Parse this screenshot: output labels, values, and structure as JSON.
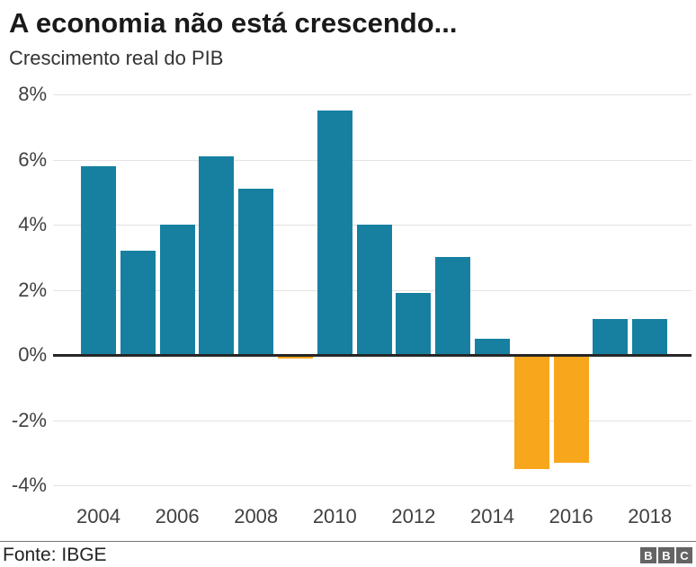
{
  "header": {
    "title": "A economia não está crescendo...",
    "subtitle": "Crescimento real do PIB"
  },
  "footer": {
    "source": "Fonte: IBGE",
    "logo": [
      "B",
      "B",
      "C"
    ]
  },
  "colors": {
    "positive_bar": "#1780a1",
    "negative_bar": "#f8a61c",
    "gridline": "#e2e2e2",
    "zero_axis": "#262626",
    "title_text": "#1a1a1a",
    "axis_text": "#404040",
    "logo_background": "#646464"
  },
  "chart_data": {
    "type": "bar",
    "title": "A economia não está crescendo...",
    "subtitle": "Crescimento real do PIB",
    "source": "Fonte: IBGE",
    "unit": "%",
    "categories": [
      "2004",
      "2005",
      "2006",
      "2007",
      "2008",
      "2009",
      "2010",
      "2011",
      "2012",
      "2013",
      "2014",
      "2015",
      "2016",
      "2017",
      "2018"
    ],
    "values": [
      5.8,
      3.2,
      4.0,
      6.1,
      5.1,
      -0.1,
      7.5,
      4.0,
      1.9,
      3.0,
      0.5,
      -3.5,
      -3.3,
      1.1,
      1.1
    ],
    "positive_color": "#1780a1",
    "negative_color": "#f8a61c",
    "y_ticks": [
      {
        "value": 8,
        "label": "8%"
      },
      {
        "value": 6,
        "label": "6%"
      },
      {
        "value": 4,
        "label": "4%"
      },
      {
        "value": 2,
        "label": "2%"
      },
      {
        "value": 0,
        "label": "0%"
      },
      {
        "value": -2,
        "label": "-2%"
      },
      {
        "value": -4,
        "label": "-4%"
      }
    ],
    "x_tick_labels": [
      "2004",
      "2006",
      "2008",
      "2010",
      "2012",
      "2014",
      "2016",
      "2018"
    ],
    "ylim": [
      -4,
      8
    ],
    "xlabel": "",
    "ylabel": "",
    "grid": "horizontal",
    "legend": "none"
  }
}
